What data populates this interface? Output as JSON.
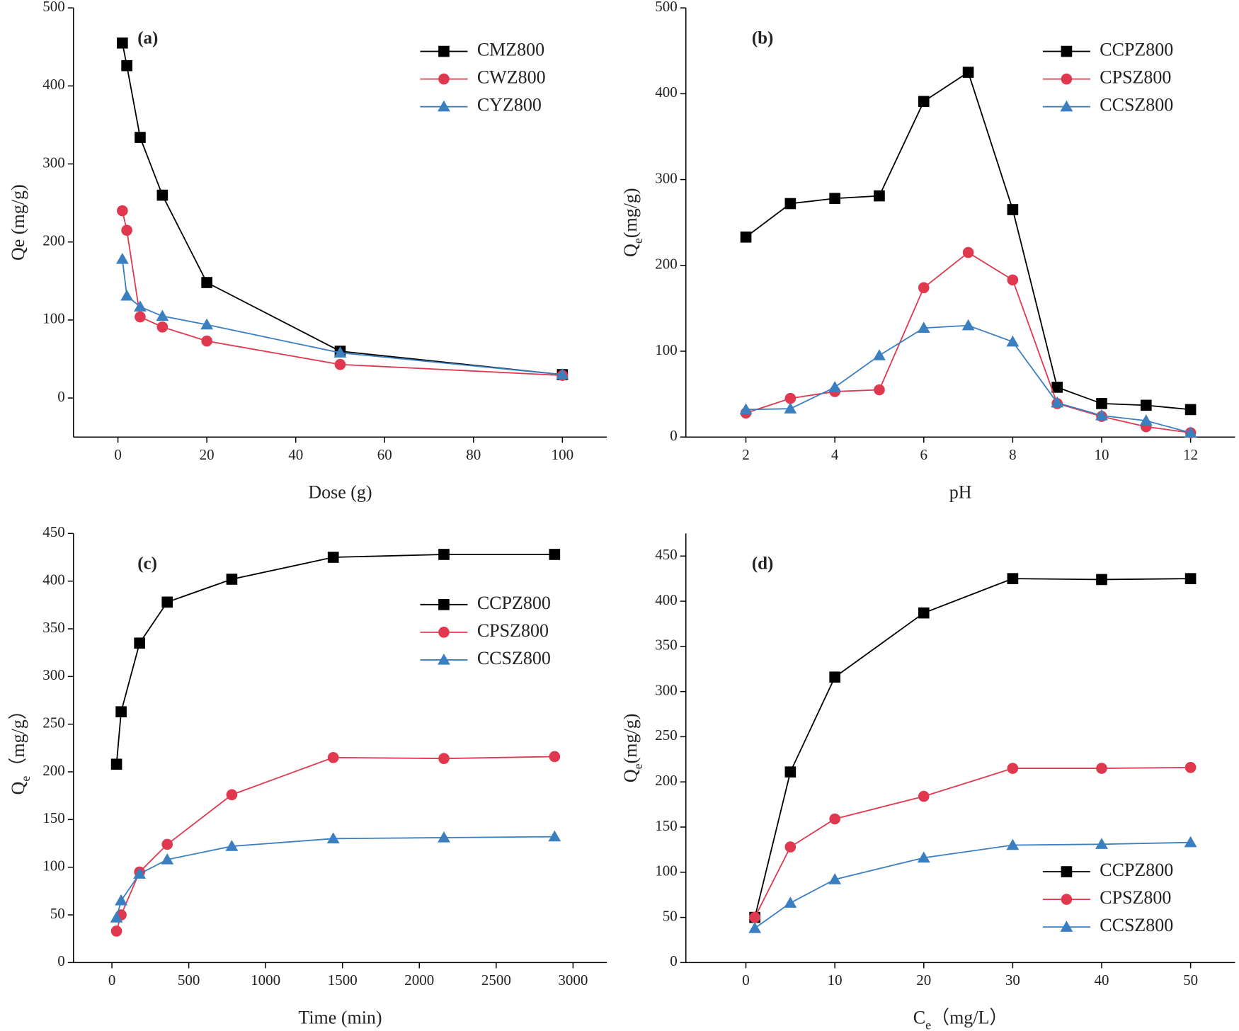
{
  "chart_data": [
    {
      "type": "line",
      "annotation": "(a)",
      "xlabel": [
        "Dose (g)"
      ],
      "ylabel": [
        "Qe (mg/g)"
      ],
      "x": [
        1,
        2,
        5,
        10,
        20,
        50,
        100
      ],
      "series": [
        {
          "name": "CMZ800",
          "color": "#000000",
          "marker": "square",
          "values": [
            455,
            426,
            334,
            260,
            148,
            60,
            30
          ]
        },
        {
          "name": "CWZ800",
          "color": "#e0384f",
          "marker": "circle",
          "values": [
            240,
            215,
            104,
            91,
            73,
            43,
            29
          ]
        },
        {
          "name": "CYZ800",
          "color": "#3a7fc0",
          "marker": "triangle",
          "values": [
            178,
            131,
            117,
            105,
            94,
            58,
            30
          ]
        }
      ],
      "xlim": [
        -10,
        110
      ],
      "ylim": [
        -50,
        500
      ],
      "xticks": [
        0,
        20,
        40,
        60,
        80,
        100
      ],
      "yticks": [
        0,
        100,
        200,
        300,
        400,
        500
      ],
      "legend": "upper right"
    },
    {
      "type": "line",
      "annotation": "(b)",
      "xlabel": [
        "pH"
      ],
      "ylabel": [
        "Q",
        "e",
        "(mg/g)"
      ],
      "x": [
        2,
        3,
        4,
        5,
        6,
        7,
        8,
        9,
        10,
        11,
        12
      ],
      "series": [
        {
          "name": "CCPZ800",
          "color": "#000000",
          "marker": "square",
          "values": [
            233,
            272,
            278,
            281,
            391,
            425,
            265,
            58,
            39,
            37,
            32
          ]
        },
        {
          "name": "CPSZ800",
          "color": "#e0384f",
          "marker": "circle",
          "values": [
            28,
            45,
            53,
            55,
            174,
            215,
            183,
            39,
            24,
            12,
            5
          ]
        },
        {
          "name": "CCSZ800",
          "color": "#3a7fc0",
          "marker": "triangle",
          "values": [
            32,
            33,
            58,
            95,
            127,
            130,
            111,
            40,
            25,
            19,
            5
          ]
        }
      ],
      "xlim": [
        0.65,
        13
      ],
      "ylim": [
        0,
        500
      ],
      "xticks": [
        2,
        4,
        6,
        8,
        10,
        12
      ],
      "yticks": [
        0,
        100,
        200,
        300,
        400,
        500
      ],
      "legend": "upper right"
    },
    {
      "type": "line",
      "annotation": "(c)",
      "xlabel": [
        "Time (min)"
      ],
      "ylabel": [
        "Q",
        "e",
        "（mg/g）"
      ],
      "x": [
        30,
        60,
        180,
        360,
        780,
        1440,
        2160,
        2880
      ],
      "series": [
        {
          "name": "CCPZ800",
          "color": "#000000",
          "marker": "square",
          "values": [
            208,
            263,
            335,
            378,
            402,
            425,
            428,
            428
          ]
        },
        {
          "name": "CPSZ800",
          "color": "#e0384f",
          "marker": "circle",
          "values": [
            33,
            50,
            95,
            124,
            176,
            215,
            214,
            216
          ]
        },
        {
          "name": "CCSZ800",
          "color": "#3a7fc0",
          "marker": "triangle",
          "values": [
            47,
            65,
            93,
            108,
            122,
            130,
            131,
            132
          ]
        }
      ],
      "xlim": [
        -250,
        3220
      ],
      "ylim": [
        0,
        450
      ],
      "xticks": [
        0,
        500,
        1000,
        1500,
        2000,
        2500,
        3000
      ],
      "yticks": [
        0,
        50,
        100,
        150,
        200,
        250,
        300,
        350,
        400,
        450
      ],
      "legend": "center right"
    },
    {
      "type": "line",
      "annotation": "(d)",
      "xlabel": [
        "C",
        "e",
        "（mg/L）"
      ],
      "ylabel": [
        "Q",
        "e",
        "(mg/g)"
      ],
      "x": [
        1,
        5,
        10,
        20,
        30,
        40,
        50
      ],
      "series": [
        {
          "name": "CCPZ800",
          "color": "#000000",
          "marker": "square",
          "values": [
            50,
            211,
            316,
            387,
            425,
            424,
            425
          ]
        },
        {
          "name": "CPSZ800",
          "color": "#e0384f",
          "marker": "circle",
          "values": [
            50,
            128,
            159,
            184,
            215,
            215,
            216
          ]
        },
        {
          "name": "CCSZ800",
          "color": "#3a7fc0",
          "marker": "triangle",
          "values": [
            38,
            66,
            92,
            116,
            130,
            131,
            133
          ]
        }
      ],
      "xlim": [
        -6.75,
        55
      ],
      "ylim": [
        0,
        475
      ],
      "xticks": [
        0,
        10,
        20,
        30,
        40,
        50
      ],
      "yticks": [
        0,
        50,
        100,
        150,
        200,
        250,
        300,
        350,
        400,
        450
      ],
      "legend": "lower right"
    }
  ]
}
